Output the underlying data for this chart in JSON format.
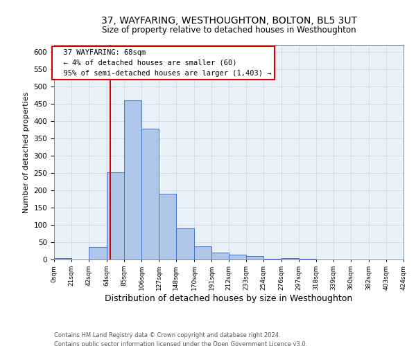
{
  "title": "37, WAYFARING, WESTHOUGHTON, BOLTON, BL5 3UT",
  "subtitle": "Size of property relative to detached houses in Westhoughton",
  "xlabel": "Distribution of detached houses by size in Westhoughton",
  "ylabel": "Number of detached properties",
  "footnote1": "Contains HM Land Registry data © Crown copyright and database right 2024.",
  "footnote2": "Contains public sector information licensed under the Open Government Licence v3.0.",
  "bin_edges": [
    0,
    21,
    42,
    64,
    85,
    106,
    127,
    148,
    170,
    191,
    212,
    233,
    254,
    276,
    297,
    318,
    339,
    360,
    382,
    403,
    424
  ],
  "bin_labels": [
    "0sqm",
    "21sqm",
    "42sqm",
    "64sqm",
    "85sqm",
    "106sqm",
    "127sqm",
    "148sqm",
    "170sqm",
    "191sqm",
    "212sqm",
    "233sqm",
    "254sqm",
    "276sqm",
    "297sqm",
    "318sqm",
    "339sqm",
    "360sqm",
    "382sqm",
    "403sqm",
    "424sqm"
  ],
  "bar_heights": [
    5,
    0,
    37,
    253,
    460,
    378,
    190,
    90,
    38,
    20,
    15,
    10,
    3,
    5,
    2,
    1,
    0,
    1,
    0,
    1
  ],
  "bar_color": "#aec6e8",
  "bar_edge_color": "#4472c4",
  "property_size": 68,
  "red_line_color": "#cc0000",
  "annotation_text": "  37 WAYFARING: 68sqm\n  ← 4% of detached houses are smaller (60)\n  95% of semi-detached houses are larger (1,403) →",
  "annotation_box_color": "#ffffff",
  "annotation_box_edge": "#cc0000",
  "ylim": [
    0,
    620
  ],
  "yticks": [
    0,
    50,
    100,
    150,
    200,
    250,
    300,
    350,
    400,
    450,
    500,
    550,
    600
  ],
  "grid_color": "#c8d8e8",
  "background_color": "#e8f0f8",
  "title_fontsize": 10,
  "subtitle_fontsize": 8.5,
  "ylabel_fontsize": 8,
  "xlabel_fontsize": 9
}
